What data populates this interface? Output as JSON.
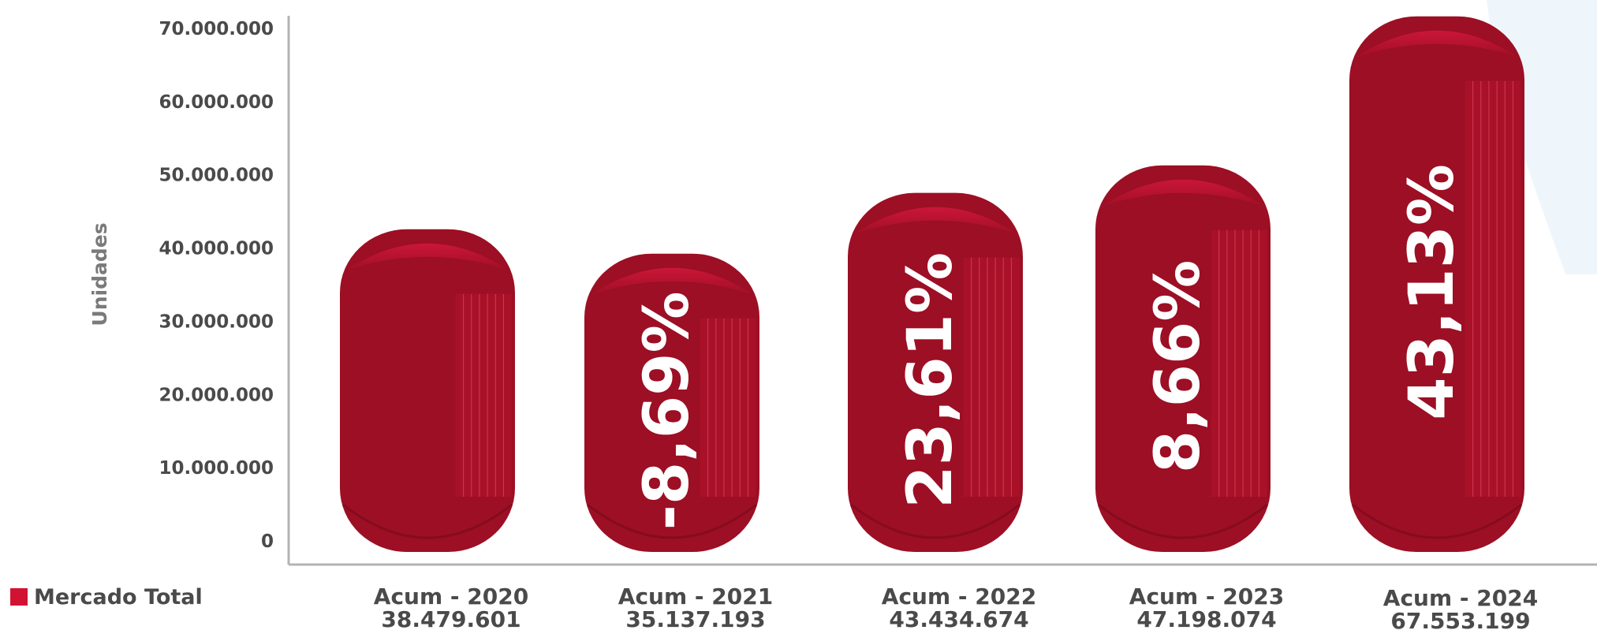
{
  "chart_data": {
    "type": "bar",
    "ylabel": "Unidades",
    "ylim": [
      0,
      70000000
    ],
    "yticks": [
      "0",
      "10.000.000",
      "20.000.000",
      "30.000.000",
      "40.000.000",
      "50.000.000",
      "60.000.000",
      "70.000.000"
    ],
    "categories": [
      "Acum - 2020",
      "Acum - 2021",
      "Acum - 2022",
      "Acum - 2023",
      "Acum - 2024"
    ],
    "value_labels": [
      "38.479.601",
      "35.137.193",
      "43.434.674",
      "47.198.074",
      "67.553.199"
    ],
    "series": [
      {
        "name": "Mercado Total",
        "values": [
          38479601,
          35137193,
          43434674,
          47198074,
          67553199
        ],
        "color": "#9c0f24"
      }
    ],
    "growth_labels": [
      "",
      "-8,69%",
      "23,61%",
      "8,66%",
      "43,13%"
    ],
    "legend": {
      "label": "Mercado Total",
      "color": "#d21232",
      "position": "bottom-left"
    },
    "grid": false,
    "colors": {
      "bar": "#9c0f24",
      "bar_top": "#c8102e",
      "axis": "#b3b3b3",
      "bg_accent": "#eef6fc"
    }
  }
}
